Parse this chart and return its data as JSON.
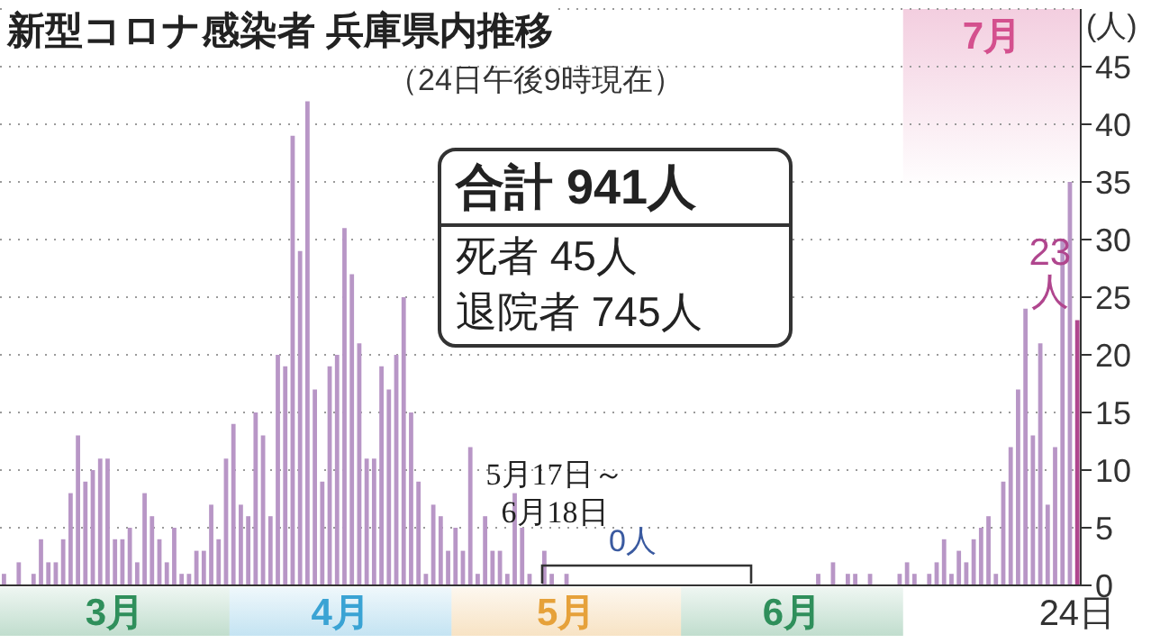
{
  "chart_data": {
    "type": "bar",
    "title": "新型コロナ感染者 兵庫県内推移",
    "subtitle": "（24日午後9時現在）",
    "ylabel": "(人)",
    "categories": [
      null,
      null,
      null,
      null,
      null,
      null,
      null,
      null,
      null,
      null,
      null,
      null,
      null,
      null,
      null,
      null,
      null,
      null,
      null,
      null,
      null,
      null,
      null,
      null,
      null,
      null,
      null,
      null,
      null,
      null,
      null,
      null,
      null,
      null,
      null,
      null,
      null,
      null,
      null,
      null,
      null,
      null,
      null,
      null,
      null,
      null,
      null,
      null,
      null,
      null,
      null,
      null,
      null,
      null,
      null,
      null,
      null,
      null,
      null,
      null,
      null,
      null,
      null,
      null,
      null,
      null,
      null,
      null,
      null,
      null,
      null,
      null,
      null,
      null,
      null,
      null,
      null,
      null,
      null,
      null,
      null,
      null,
      null,
      null,
      null,
      null,
      null,
      null,
      null,
      null,
      null,
      null,
      null,
      null,
      null,
      null,
      null,
      null,
      null,
      null,
      null,
      null,
      null,
      null,
      null,
      null,
      null,
      null,
      null,
      null,
      null,
      null,
      null,
      null,
      null,
      null,
      null,
      null,
      null,
      null,
      null,
      null,
      null,
      null,
      null,
      null,
      null,
      null,
      null,
      null,
      null,
      null,
      null,
      null,
      null,
      null,
      null,
      null,
      null,
      null,
      null,
      null,
      null,
      null,
      null,
      "24日"
    ],
    "values": [
      1,
      0,
      2,
      0,
      1,
      4,
      2,
      2,
      4,
      8,
      13,
      9,
      10,
      11,
      11,
      4,
      4,
      5,
      2,
      8,
      6,
      4,
      2,
      5,
      1,
      1,
      3,
      3,
      7,
      4,
      11,
      14,
      7,
      6,
      15,
      13,
      6,
      20,
      19,
      39,
      29,
      42,
      17,
      9,
      19,
      20,
      31,
      27,
      21,
      11,
      11,
      19,
      17,
      20,
      25,
      15,
      9,
      1,
      7,
      6,
      3,
      5,
      3,
      12,
      1,
      6,
      3,
      3,
      1,
      8,
      5,
      1,
      0,
      3,
      1,
      0,
      1,
      0,
      0,
      0,
      0,
      0,
      0,
      0,
      0,
      0,
      0,
      0,
      0,
      0,
      0,
      0,
      0,
      0,
      0,
      0,
      0,
      0,
      0,
      0,
      0,
      0,
      0,
      0,
      0,
      0,
      0,
      0,
      0,
      0,
      1,
      0,
      2,
      0,
      1,
      1,
      0,
      1,
      0,
      0,
      0,
      1,
      2,
      1,
      0,
      1,
      2,
      4,
      1,
      3,
      2,
      4,
      5,
      6,
      1,
      9,
      12,
      17,
      24,
      13,
      21,
      7,
      12,
      30,
      35,
      23
    ],
    "colors": [
      "#b896c6",
      "#b896c6",
      "#b896c6",
      "#b896c6",
      "#b896c6",
      "#b896c6",
      "#b896c6",
      "#b896c6",
      "#b896c6",
      "#b896c6",
      "#b896c6",
      "#b896c6",
      "#b896c6",
      "#b896c6",
      "#b896c6",
      "#b896c6",
      "#b896c6",
      "#b896c6",
      "#b896c6",
      "#b896c6",
      "#b896c6",
      "#b896c6",
      "#b896c6",
      "#b896c6",
      "#b896c6",
      "#b896c6",
      "#b896c6",
      "#b896c6",
      "#b896c6",
      "#b896c6",
      "#b896c6",
      "#b896c6",
      "#b896c6",
      "#b896c6",
      "#b896c6",
      "#b896c6",
      "#b896c6",
      "#b896c6",
      "#b896c6",
      "#b896c6",
      "#b896c6",
      "#b896c6",
      "#b896c6",
      "#b896c6",
      "#b896c6",
      "#b896c6",
      "#b896c6",
      "#b896c6",
      "#b896c6",
      "#b896c6",
      "#b896c6",
      "#b896c6",
      "#b896c6",
      "#b896c6",
      "#b896c6",
      "#b896c6",
      "#b896c6",
      "#b896c6",
      "#b896c6",
      "#b896c6",
      "#b896c6",
      "#b896c6",
      "#b896c6",
      "#b896c6",
      "#b896c6",
      "#b896c6",
      "#b896c6",
      "#b896c6",
      "#b896c6",
      "#b896c6",
      "#b896c6",
      "#b896c6",
      "#b896c6",
      "#b896c6",
      "#b896c6",
      "#b896c6",
      "#b896c6",
      "#b896c6",
      "#b896c6",
      "#b896c6",
      "#b896c6",
      "#b896c6",
      "#b896c6",
      "#b896c6",
      "#b896c6",
      "#b896c6",
      "#b896c6",
      "#b896c6",
      "#b896c6",
      "#b896c6",
      "#b896c6",
      "#b896c6",
      "#b896c6",
      "#b896c6",
      "#b896c6",
      "#b896c6",
      "#b896c6",
      "#b896c6",
      "#b896c6",
      "#b896c6",
      "#b896c6",
      "#b896c6",
      "#b896c6",
      "#b896c6",
      "#b896c6",
      "#b896c6",
      "#b896c6",
      "#b896c6",
      "#b896c6",
      "#b896c6",
      "#b896c6",
      "#b896c6",
      "#b896c6",
      "#b896c6",
      "#b896c6",
      "#b896c6",
      "#b896c6",
      "#b896c6",
      "#b896c6",
      "#b896c6",
      "#b896c6",
      "#b896c6",
      "#b896c6",
      "#b896c6",
      "#b896c6",
      "#b896c6",
      "#b896c6",
      "#b896c6",
      "#b896c6",
      "#b896c6",
      "#b896c6",
      "#b896c6",
      "#b896c6",
      "#b896c6",
      "#b896c6",
      "#b896c6",
      "#b896c6",
      "#b896c6",
      "#b896c6",
      "#b896c6",
      "#b896c6",
      "#b896c6",
      "#b896c6",
      "#b896c6",
      "#b896c6",
      "#b0468e"
    ],
    "value_labels": [
      null,
      null,
      null,
      null,
      null,
      null,
      null,
      null,
      null,
      null,
      null,
      null,
      null,
      null,
      null,
      null,
      null,
      null,
      null,
      null,
      null,
      null,
      null,
      null,
      null,
      null,
      null,
      null,
      null,
      null,
      null,
      null,
      null,
      null,
      null,
      null,
      null,
      null,
      null,
      null,
      null,
      null,
      null,
      null,
      null,
      null,
      null,
      null,
      null,
      null,
      null,
      null,
      null,
      null,
      null,
      null,
      null,
      null,
      null,
      null,
      null,
      null,
      null,
      null,
      null,
      null,
      null,
      null,
      null,
      null,
      null,
      null,
      null,
      null,
      null,
      null,
      null,
      null,
      null,
      null,
      null,
      null,
      null,
      null,
      null,
      null,
      null,
      null,
      null,
      null,
      null,
      null,
      null,
      null,
      null,
      null,
      null,
      null,
      null,
      null,
      null,
      null,
      null,
      null,
      null,
      null,
      null,
      null,
      null,
      null,
      null,
      null,
      null,
      null,
      null,
      null,
      null,
      null,
      null,
      null,
      null,
      null,
      null,
      null,
      null,
      null,
      null,
      null,
      null,
      null,
      null,
      null,
      null,
      null,
      null,
      null,
      null,
      null,
      null,
      null,
      null,
      null,
      null,
      null,
      null,
      "23人"
    ],
    "ylim": [
      0,
      50
    ],
    "yticks": [
      0,
      5,
      10,
      15,
      20,
      25,
      30,
      35,
      40,
      45
    ],
    "grid": "y",
    "annotations": [
      "合計 941人",
      "死者 45人",
      "退院者 745人",
      "5月17日～6月18日",
      "0人",
      "3月",
      "4月",
      "5月",
      "6月",
      "7月"
    ]
  }
}
